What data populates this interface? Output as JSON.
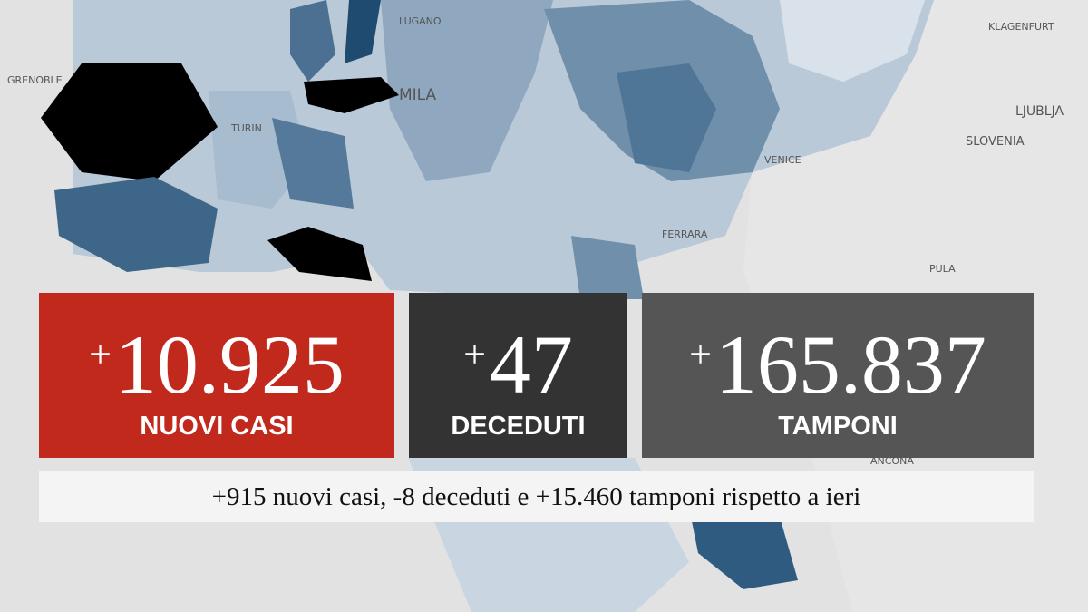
{
  "cards": [
    {
      "sign": "+",
      "value": "10.925",
      "label": "NUOVI CASI"
    },
    {
      "sign": "+",
      "value": "47",
      "label": "DECEDUTI"
    },
    {
      "sign": "+",
      "value": "165.837",
      "label": "TAMPONI"
    }
  ],
  "summary": "+915 nuovi casi, -8 deceduti e +15.460 tamponi rispetto a ieri",
  "map_labels": [
    "LUGANO",
    "GRENOBLE",
    "TURIN",
    "MILA",
    "KLAGENFURT",
    "LJUBLJA",
    "SLOVENIA",
    "VENICE",
    "FERRARA",
    "PULA",
    "ANCONA"
  ]
}
